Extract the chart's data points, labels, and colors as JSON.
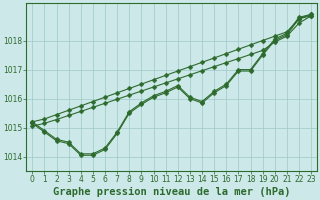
{
  "x": [
    0,
    1,
    2,
    3,
    4,
    5,
    6,
    7,
    8,
    9,
    10,
    11,
    12,
    13,
    14,
    15,
    16,
    17,
    18,
    19,
    20,
    21,
    22,
    23
  ],
  "series": {
    "smooth1": [
      1015.2,
      1015.3,
      1015.45,
      1015.6,
      1015.75,
      1015.9,
      1016.05,
      1016.2,
      1016.35,
      1016.5,
      1016.65,
      1016.8,
      1016.95,
      1017.1,
      1017.25,
      1017.4,
      1017.55,
      1017.7,
      1017.85,
      1018.0,
      1018.15,
      1018.3,
      1018.75,
      1018.9
    ],
    "smooth2": [
      1015.05,
      1015.15,
      1015.28,
      1015.42,
      1015.56,
      1015.7,
      1015.84,
      1015.98,
      1016.12,
      1016.26,
      1016.4,
      1016.54,
      1016.68,
      1016.82,
      1016.96,
      1017.1,
      1017.24,
      1017.38,
      1017.52,
      1017.66,
      1017.95,
      1018.15,
      1018.6,
      1018.85
    ],
    "jagged1": [
      1015.2,
      1014.9,
      1014.6,
      1014.5,
      1014.1,
      1014.1,
      1014.3,
      1014.85,
      1015.55,
      1015.85,
      1016.1,
      1016.25,
      1016.45,
      1016.05,
      1015.9,
      1016.25,
      1016.5,
      1017.0,
      1017.0,
      1017.55,
      1018.05,
      1018.25,
      1018.8,
      1018.9
    ],
    "jagged2": [
      1015.15,
      1014.85,
      1014.55,
      1014.45,
      1014.05,
      1014.05,
      1014.25,
      1014.8,
      1015.5,
      1015.8,
      1016.05,
      1016.2,
      1016.4,
      1016.0,
      1015.85,
      1016.2,
      1016.45,
      1016.95,
      1016.95,
      1017.5,
      1018.0,
      1018.2,
      1018.75,
      1018.85
    ]
  },
  "line_color": "#2d6a2d",
  "marker": "D",
  "marker_size": 2.5,
  "background_color": "#cce8e8",
  "grid_color": "#9ec8c8",
  "ylim": [
    1013.5,
    1019.3
  ],
  "yticks": [
    1014,
    1015,
    1016,
    1017,
    1018
  ],
  "xticks": [
    0,
    1,
    2,
    3,
    4,
    5,
    6,
    7,
    8,
    9,
    10,
    11,
    12,
    13,
    14,
    15,
    16,
    17,
    18,
    19,
    20,
    21,
    22,
    23
  ],
  "xlabel": "Graphe pression niveau de la mer (hPa)",
  "xlabel_fontsize": 7.5,
  "tick_fontsize": 5.5,
  "line_width": 0.8,
  "figsize": [
    3.2,
    2.0
  ],
  "dpi": 100
}
